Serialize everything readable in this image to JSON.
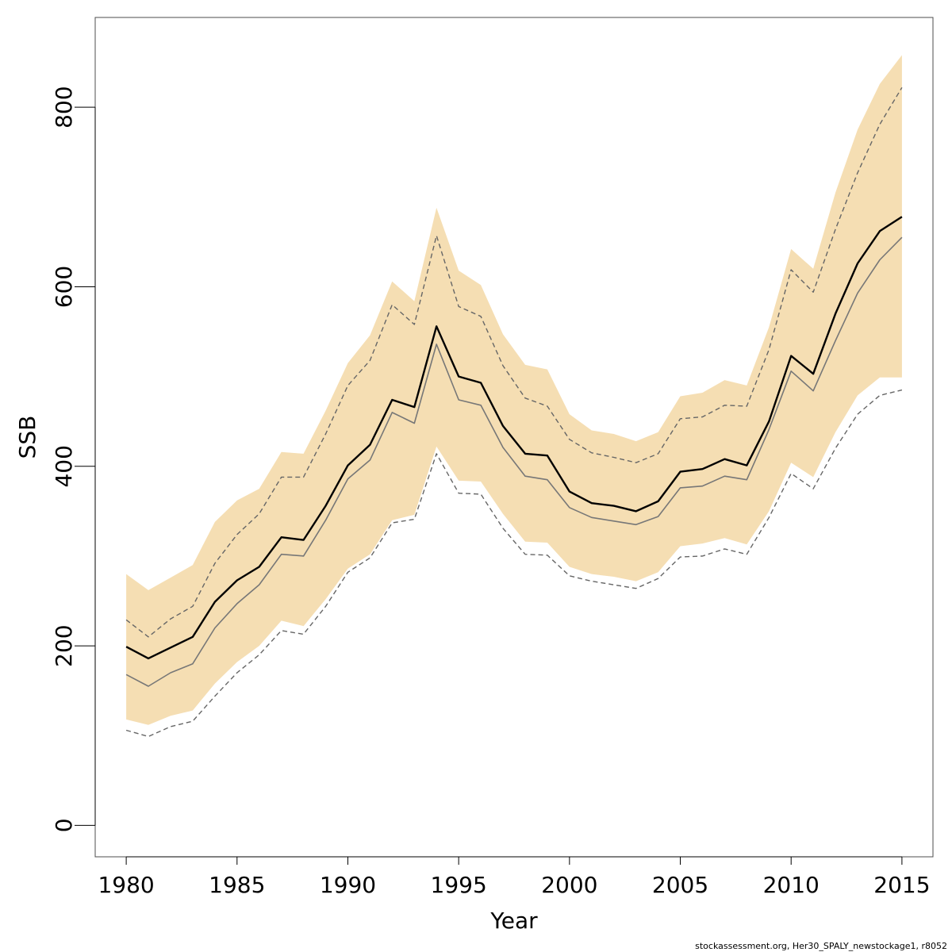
{
  "chart_data": {
    "type": "line",
    "xlabel": "Year",
    "ylabel": "SSB",
    "xlim": [
      1978.6,
      2016.4
    ],
    "ylim": [
      -35,
      900
    ],
    "x_ticks": [
      1980,
      1985,
      1990,
      1995,
      2000,
      2005,
      2010,
      2015
    ],
    "y_ticks": [
      0,
      200,
      400,
      600,
      800
    ],
    "grid": false,
    "legend": "none",
    "x": [
      1980,
      1981,
      1982,
      1983,
      1984,
      1985,
      1986,
      1987,
      1988,
      1989,
      1990,
      1991,
      1992,
      1993,
      1994,
      1995,
      1996,
      1997,
      1998,
      1999,
      2000,
      2001,
      2002,
      2003,
      2004,
      2005,
      2006,
      2007,
      2008,
      2009,
      2010,
      2011,
      2012,
      2013,
      2014,
      2015
    ],
    "band": {
      "lower": [
        118,
        112,
        122,
        128,
        158,
        182,
        200,
        228,
        222,
        252,
        286,
        302,
        340,
        346,
        422,
        384,
        383,
        347,
        316,
        315,
        288,
        280,
        277,
        272,
        282,
        311,
        314,
        320,
        313,
        350,
        404,
        388,
        438,
        479,
        499,
        499
      ],
      "upper": [
        280,
        262,
        276,
        290,
        338,
        362,
        375,
        416,
        414,
        462,
        515,
        546,
        606,
        584,
        688,
        618,
        602,
        547,
        513,
        508,
        458,
        440,
        436,
        428,
        438,
        478,
        482,
        496,
        490,
        555,
        642,
        620,
        705,
        775,
        826,
        858
      ]
    },
    "series": [
      {
        "style": "dashed-upper",
        "values": [
          229,
          210,
          230,
          244,
          292,
          324,
          347,
          388,
          388,
          436,
          490,
          518,
          580,
          558,
          657,
          578,
          567,
          512,
          476,
          467,
          430,
          415,
          410,
          404,
          414,
          453,
          455,
          468,
          467,
          530,
          619,
          594,
          664,
          727,
          781,
          822
        ]
      },
      {
        "style": "main",
        "values": [
          199,
          186,
          198,
          210,
          249,
          273,
          288,
          321,
          318,
          356,
          401,
          424,
          474,
          466,
          556,
          500,
          493,
          445,
          414,
          412,
          372,
          359,
          356,
          350,
          361,
          394,
          397,
          408,
          401,
          450,
          523,
          503,
          570,
          626,
          662,
          678
        ]
      },
      {
        "style": "median",
        "values": [
          168,
          155,
          170,
          180,
          220,
          247,
          268,
          302,
          300,
          340,
          386,
          407,
          460,
          448,
          536,
          474,
          468,
          421,
          389,
          385,
          354,
          343,
          339,
          335,
          344,
          376,
          378,
          389,
          385,
          441,
          506,
          484,
          540,
          593,
          630,
          655
        ]
      },
      {
        "style": "dashed-lower",
        "values": [
          106,
          99,
          110,
          116,
          144,
          170,
          190,
          217,
          213,
          244,
          282,
          298,
          337,
          341,
          414,
          370,
          369,
          331,
          302,
          301,
          278,
          272,
          268,
          264,
          275,
          299,
          300,
          308,
          302,
          343,
          392,
          375,
          420,
          458,
          479,
          485
        ]
      }
    ],
    "colors": {
      "band": "#f5deb3",
      "main": "#000000",
      "median": "#777777",
      "dashed": "#666666",
      "frame": "#4d4d4d"
    }
  },
  "footer": "stockassessment.org, Her30_SPALY_newstockage1, r8052"
}
